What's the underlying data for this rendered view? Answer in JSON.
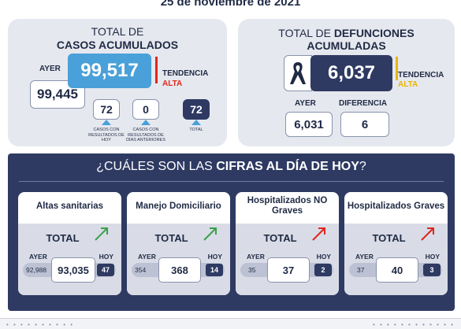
{
  "header": {
    "date": "25 de noviembre de 2021"
  },
  "casos": {
    "title_line1": "TOTAL DE",
    "title_line2": "CASOS ACUMULADOS",
    "ayer_label": "AYER",
    "ayer_value": "99,445",
    "total_value": "99,517",
    "tendencia_label": "TENDENCIA",
    "tendencia_value": "ALTA",
    "box1_value": "72",
    "box1_caption": "CASOS CON RESULTADOS DE HOY",
    "box2_value": "0",
    "box2_caption": "CASOS CON RESULTADOS DE DÍAS ANTERIORES",
    "box3_value": "72",
    "box3_caption": "TOTAL",
    "colors": {
      "total_box": "#4aa0d8",
      "box3": "#2e3a62",
      "trend": "#e0261d"
    }
  },
  "defunciones": {
    "title_line1_a": "TOTAL DE ",
    "title_line1_b": "DEFUNCIONES",
    "title_line2": "ACUMULADAS",
    "total_value": "6,037",
    "tendencia_label": "TENDENCIA",
    "tendencia_value": "ALTA",
    "ayer_label": "AYER",
    "ayer_value": "6,031",
    "diferencia_label": "DIFERENCIA",
    "diferencia_value": "6",
    "icon": "ribbon-icon",
    "colors": {
      "total_box": "#2e3a62",
      "trend": "#e8b600"
    }
  },
  "hoy": {
    "title_a": "¿CUÁLES SON LAS ",
    "title_b": "CIFRAS AL DÍA DE HOY",
    "title_c": "?",
    "cards": [
      {
        "title": "Altas sanitarias",
        "total_label": "TOTAL",
        "ayer_label": "AYER",
        "hoy_label": "HOY",
        "ayer": "92,988",
        "total": "93,035",
        "hoy": "47",
        "arrow": "up-arrow-green-icon"
      },
      {
        "title": "Manejo Domiciliario",
        "total_label": "TOTAL",
        "ayer_label": "AYER",
        "hoy_label": "HOY",
        "ayer": "354",
        "total": "368",
        "hoy": "14",
        "arrow": "up-arrow-green-icon"
      },
      {
        "title": "Hospitalizados NO Graves",
        "total_label": "TOTAL",
        "ayer_label": "AYER",
        "hoy_label": "HOY",
        "ayer": "35",
        "total": "37",
        "hoy": "2",
        "arrow": "up-arrow-red-icon"
      },
      {
        "title": "Hospitalizados Graves",
        "total_label": "TOTAL",
        "ayer_label": "AYER",
        "hoy_label": "HOY",
        "ayer": "37",
        "total": "40",
        "hoy": "3",
        "arrow": "up-arrow-red-icon"
      }
    ]
  }
}
